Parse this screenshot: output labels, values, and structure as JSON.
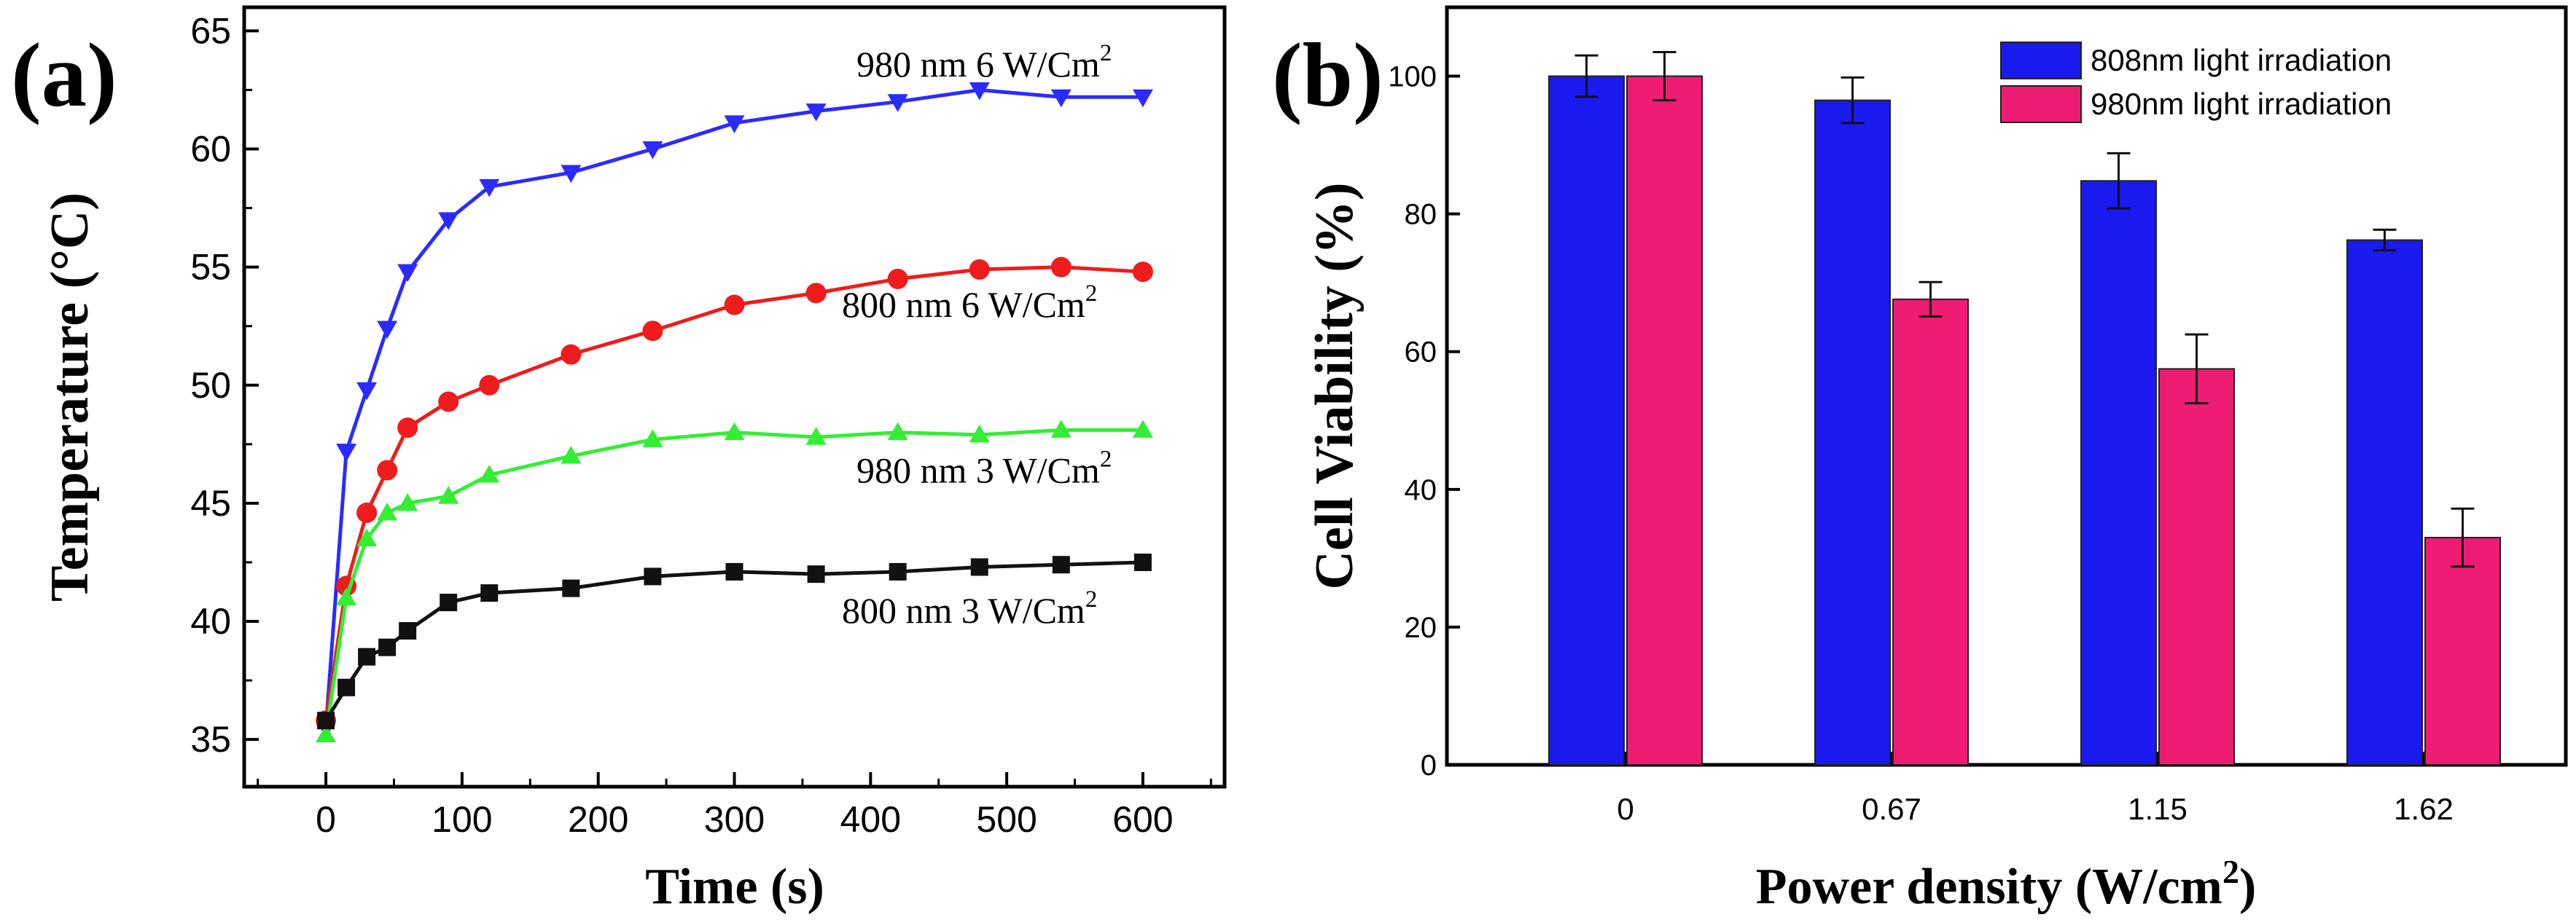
{
  "panels": {
    "a": {
      "label": "(a)"
    },
    "b": {
      "label": "(b)"
    }
  },
  "chart_data": [
    {
      "type": "line",
      "panel": "a",
      "title": "",
      "xlabel": "Time (s)",
      "ylabel": "Temperature (°C)",
      "xlim": [
        -60,
        660
      ],
      "ylim": [
        33,
        66
      ],
      "xticks": [
        0,
        100,
        200,
        300,
        400,
        500,
        600
      ],
      "yticks": [
        35,
        40,
        45,
        50,
        55,
        60,
        65
      ],
      "x": [
        0,
        15,
        30,
        45,
        60,
        90,
        120,
        180,
        240,
        300,
        360,
        420,
        480,
        540,
        600
      ],
      "series": [
        {
          "name": "980 nm 6 W/Cm2",
          "label_main": "980 nm  6 W/Cm",
          "label_sup": "2",
          "color": "#2b2bff",
          "marker": "triangle-down",
          "values": [
            35.5,
            47.2,
            49.8,
            52.4,
            54.8,
            57.0,
            58.4,
            59.0,
            60.0,
            61.1,
            61.6,
            62.0,
            62.5,
            62.2,
            62.2
          ]
        },
        {
          "name": "800 nm 6 W/Cm2",
          "label_main": "800 nm  6 W/Cm",
          "label_sup": "2",
          "color": "#ee1c1c",
          "marker": "circle",
          "values": [
            35.8,
            41.5,
            44.6,
            46.4,
            48.2,
            49.3,
            50.0,
            51.3,
            52.3,
            53.4,
            53.9,
            54.5,
            54.9,
            55.0,
            54.8
          ]
        },
        {
          "name": "980 nm 3 W/Cm2",
          "label_main": "980 nm  3 W/Cm",
          "label_sup": "2",
          "color": "#33ee33",
          "marker": "triangle-up",
          "values": [
            35.2,
            41.0,
            43.5,
            44.6,
            45.0,
            45.3,
            46.2,
            47.0,
            47.7,
            48.0,
            47.8,
            48.0,
            47.9,
            48.1,
            48.1
          ]
        },
        {
          "name": "800 nm 3 W/Cm2",
          "label_main": "800 nm  3 W/Cm",
          "label_sup": "2",
          "color": "#111111",
          "marker": "square",
          "values": [
            35.8,
            37.2,
            38.5,
            38.9,
            39.6,
            40.8,
            41.2,
            41.4,
            41.9,
            42.1,
            42.0,
            42.1,
            42.3,
            42.4,
            42.5
          ]
        }
      ]
    },
    {
      "type": "bar",
      "panel": "b",
      "title": "",
      "xlabel_main": "Power density (W/cm",
      "xlabel_sup": "2",
      "xlabel_end": ")",
      "xlabel": "Power density (W/cm2)",
      "ylabel": "Cell Viability (%)",
      "ylim": [
        0,
        110
      ],
      "yticks": [
        0,
        20,
        40,
        60,
        80,
        100
      ],
      "categories": [
        "0",
        "0.67",
        "1.15",
        "1.62"
      ],
      "series": [
        {
          "name": "808nm light irradiation",
          "color": "#1a1aee",
          "values": [
            100,
            96.5,
            84.8,
            76.2
          ],
          "errors": [
            3,
            3.3,
            4,
            1.5
          ]
        },
        {
          "name": "980nm light irradiation",
          "color": "#ee1c73",
          "values": [
            100,
            67.6,
            57.5,
            33.0
          ],
          "errors": [
            3.5,
            2.5,
            5,
            4.2
          ]
        }
      ],
      "legend_position": "top-right"
    }
  ]
}
